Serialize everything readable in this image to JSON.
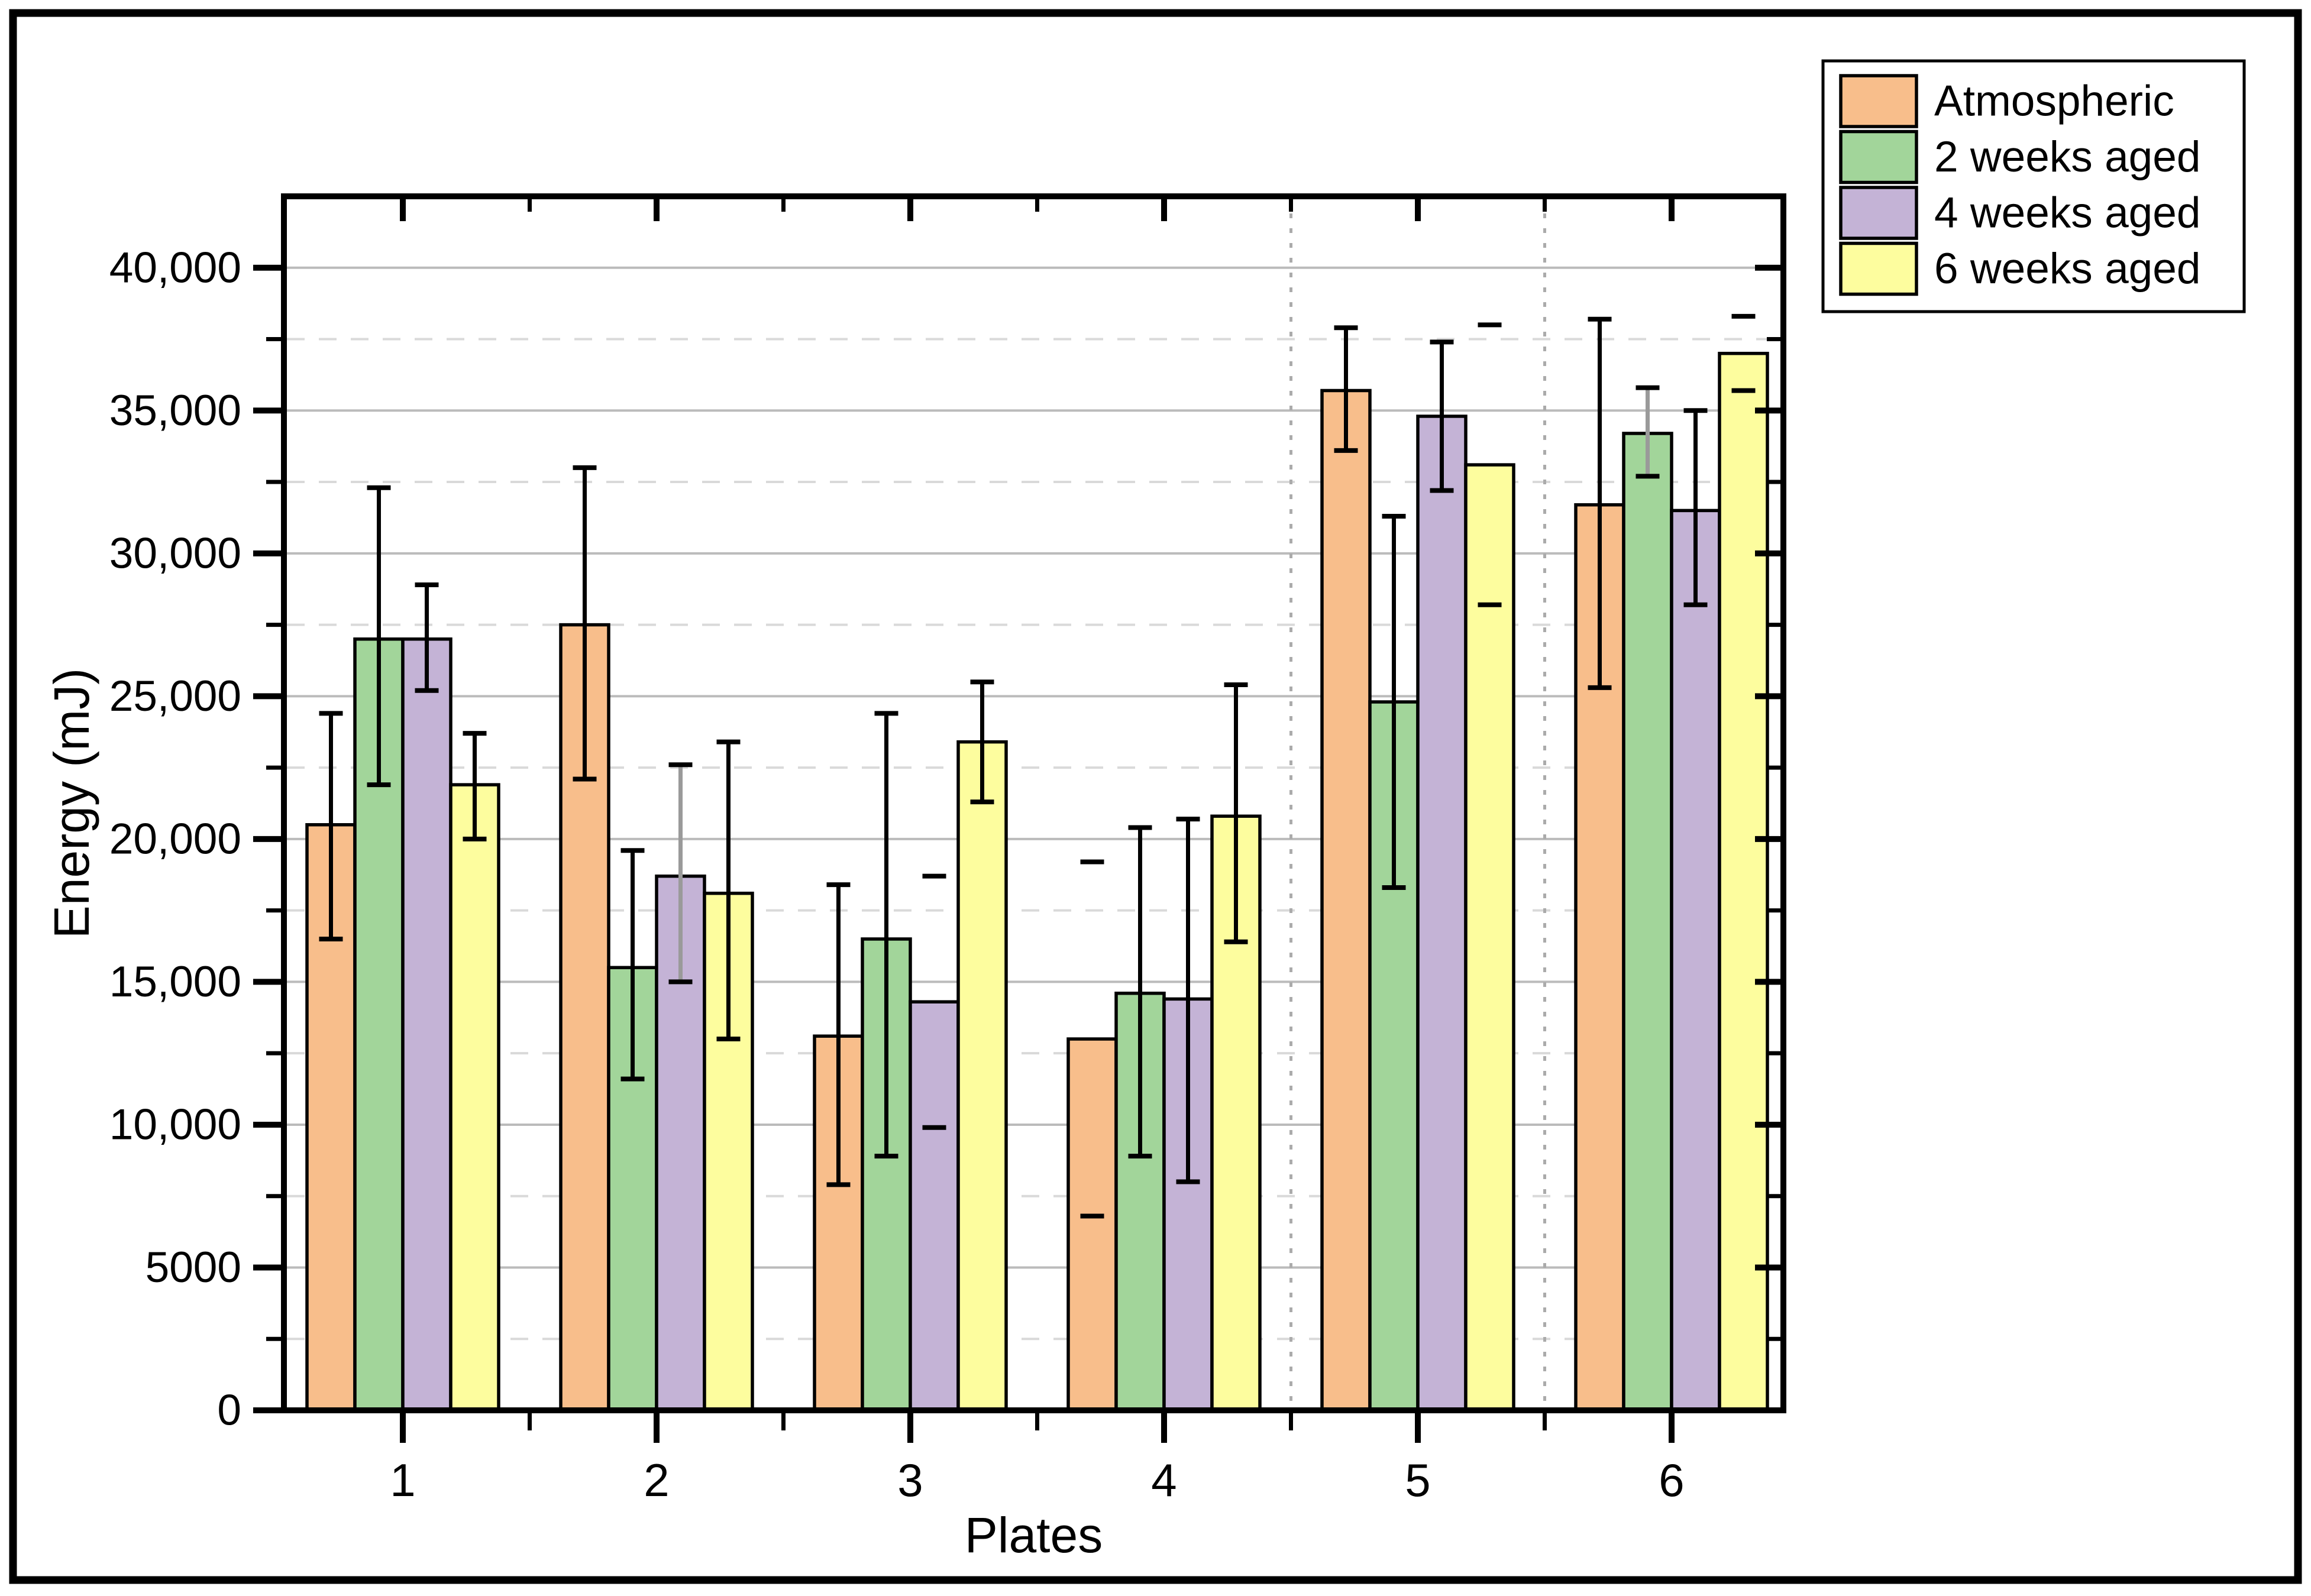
{
  "figure": {
    "background": "#ffffff",
    "outer_border_color": "#000000"
  },
  "chart_data": {
    "type": "bar",
    "title": "",
    "xlabel": "Plates",
    "ylabel": "Energy (mJ)",
    "categories": [
      "1",
      "2",
      "3",
      "4",
      "5",
      "6"
    ],
    "ylim": [
      0,
      42500
    ],
    "y_major_step": 5000,
    "y_minor_step": 2500,
    "y_tick_labels": [
      "0",
      "5000",
      "10,000",
      "15,000",
      "20,000",
      "25,000",
      "30,000",
      "35,000",
      "40,000"
    ],
    "grid": {
      "h_major_on": true,
      "h_minor_on": true,
      "v_dotted_boundaries": [
        4.5,
        5.5
      ],
      "major_color": "#bbbbbb",
      "minor_color": "#d9d9d9",
      "v_dotted_color": "#ababab"
    },
    "legend": {
      "position": "top-right",
      "border_color": "#000000",
      "items": [
        "Atmospheric",
        "2 weeks aged",
        "4 weeks aged",
        "6 weeks aged"
      ]
    },
    "series": [
      {
        "name": "Atmospheric",
        "color": "#F8BE8B",
        "values": [
          20500,
          27500,
          13100,
          13000,
          35700,
          31700
        ],
        "err_low": [
          16500,
          22100,
          7900,
          6800,
          33600,
          25300
        ],
        "err_high": [
          24400,
          33000,
          18400,
          19200,
          37900,
          38200
        ],
        "err_style": [
          "full",
          "full",
          "full",
          "caps",
          "full",
          "full"
        ]
      },
      {
        "name": "2 weeks aged",
        "color": "#A2D59A",
        "values": [
          27000,
          15500,
          16500,
          14600,
          24800,
          34200
        ],
        "err_low": [
          21900,
          11600,
          8900,
          8900,
          18300,
          32700
        ],
        "err_high": [
          32300,
          19600,
          24400,
          20400,
          31300,
          35800
        ],
        "err_style": [
          "full",
          "full",
          "full",
          "full",
          "full",
          "grayline"
        ]
      },
      {
        "name": "4 weeks aged",
        "color": "#C4B3D6",
        "values": [
          27000,
          18700,
          14300,
          14400,
          34800,
          31500
        ],
        "err_low": [
          25200,
          15000,
          9900,
          8000,
          32200,
          28200
        ],
        "err_high": [
          28900,
          22600,
          18700,
          20700,
          37400,
          35000
        ],
        "err_style": [
          "full",
          "grayline",
          "caps",
          "full",
          "full",
          "full"
        ]
      },
      {
        "name": "6 weeks aged",
        "color": "#FDFD9E",
        "values": [
          21900,
          18100,
          23400,
          20800,
          33100,
          37000
        ],
        "err_low": [
          20000,
          13000,
          21300,
          16400,
          28200,
          35700
        ],
        "err_high": [
          23700,
          23400,
          25500,
          25400,
          38000,
          38300
        ],
        "err_style": [
          "full",
          "full",
          "full",
          "full",
          "caps",
          "caps"
        ]
      }
    ],
    "error_bar_color": "#000000",
    "error_bar_gray": "#9a9a9a",
    "bar_border_color": "#000000"
  }
}
